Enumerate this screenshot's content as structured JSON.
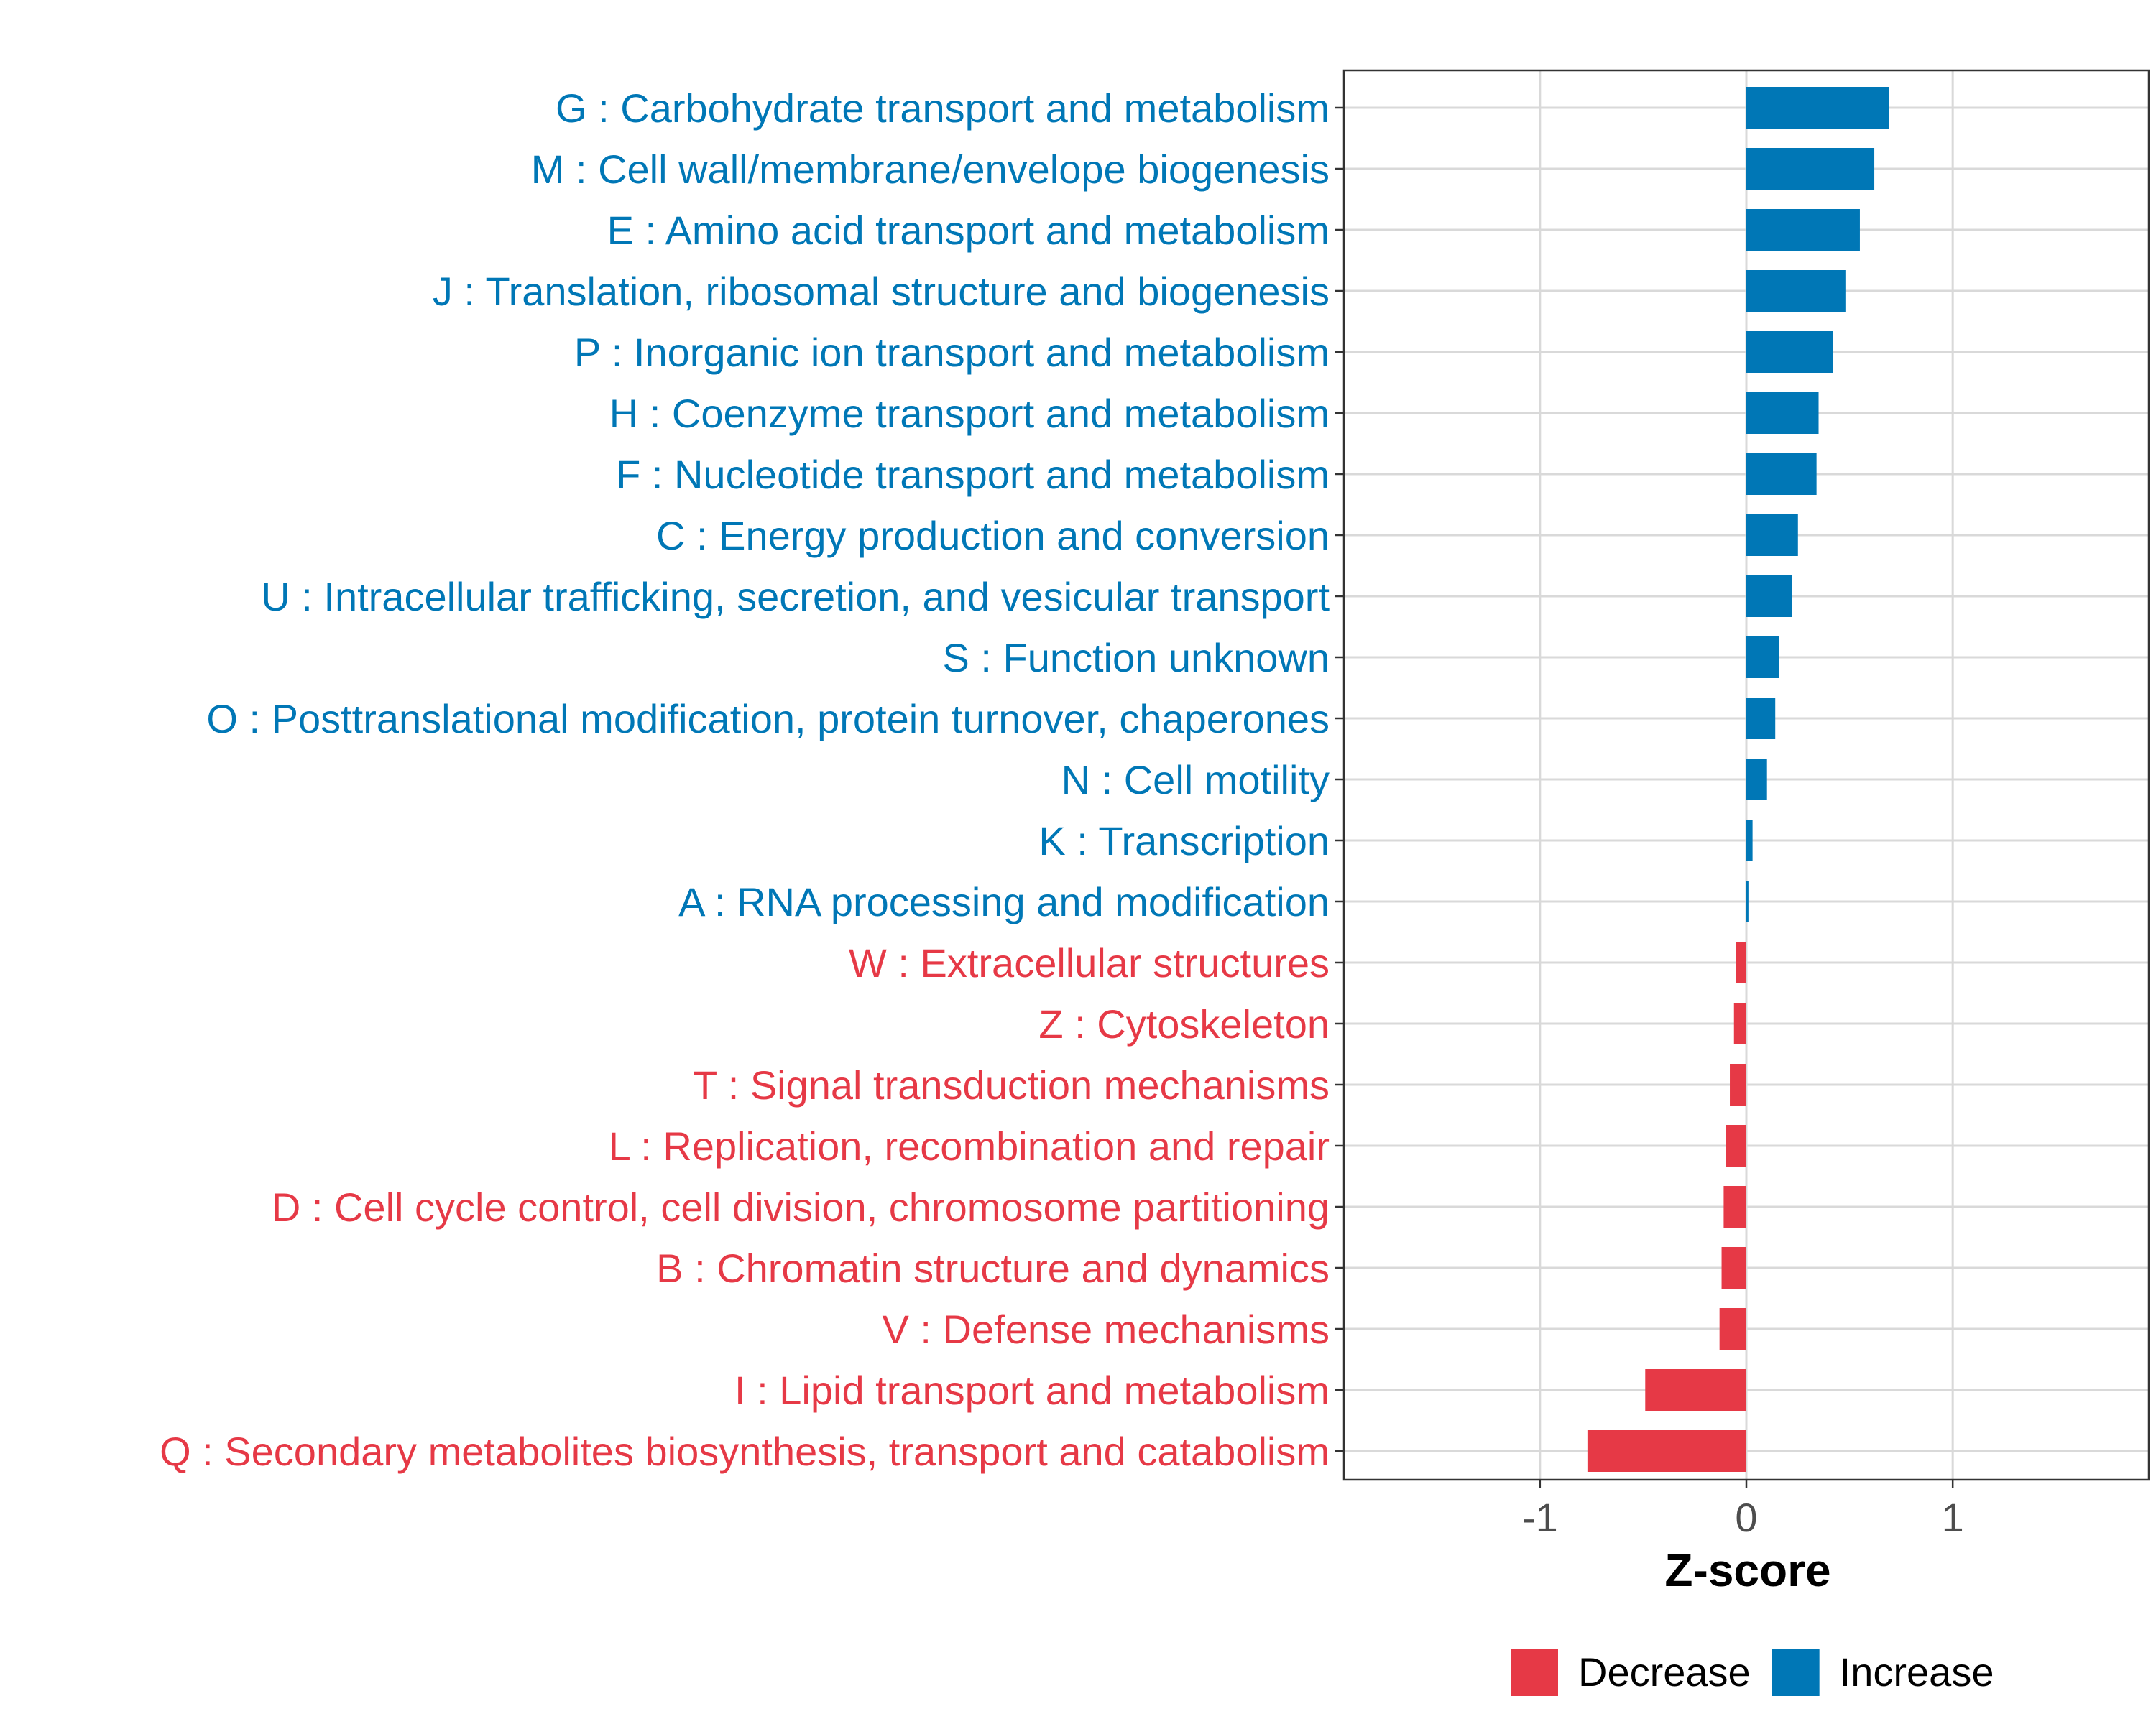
{
  "chart_data": {
    "type": "bar",
    "orientation": "horizontal",
    "categories": [
      "G : Carbohydrate transport and metabolism",
      "M : Cell wall/membrane/envelope biogenesis",
      "E : Amino acid transport and metabolism",
      "J : Translation, ribosomal structure and biogenesis",
      "P : Inorganic ion transport and metabolism",
      "H : Coenzyme transport and metabolism",
      "F : Nucleotide transport and metabolism",
      "C : Energy production and conversion",
      "U : Intracellular trafficking, secretion, and vesicular transport",
      "S : Function unknown",
      "O : Posttranslational modification, protein turnover, chaperones",
      "N : Cell motility",
      "K : Transcription",
      "A : RNA processing and modification",
      "W : Extracellular structures",
      "Z : Cytoskeleton",
      "T : Signal transduction mechanisms",
      "L : Replication, recombination and repair",
      "D : Cell cycle control, cell division, chromosome partitioning",
      "B : Chromatin structure and dynamics",
      "V : Defense mechanisms",
      "I : Lipid transport and metabolism",
      "Q : Secondary metabolites biosynthesis, transport and catabolism"
    ],
    "values": [
      0.69,
      0.62,
      0.55,
      0.48,
      0.42,
      0.35,
      0.34,
      0.25,
      0.22,
      0.16,
      0.14,
      0.1,
      0.03,
      0.01,
      -0.05,
      -0.06,
      -0.08,
      -0.1,
      -0.11,
      -0.12,
      -0.13,
      -0.49,
      -0.77
    ],
    "groups": [
      "Increase",
      "Increase",
      "Increase",
      "Increase",
      "Increase",
      "Increase",
      "Increase",
      "Increase",
      "Increase",
      "Increase",
      "Increase",
      "Increase",
      "Increase",
      "Increase",
      "Decrease",
      "Decrease",
      "Decrease",
      "Decrease",
      "Decrease",
      "Decrease",
      "Decrease",
      "Decrease",
      "Decrease"
    ],
    "xlim": [
      -1.95,
      1.95
    ],
    "xticks": [
      -1,
      0,
      1
    ],
    "xtick_labels": [
      "-1",
      "0",
      "1"
    ],
    "xlabel": "Z-score",
    "ylabel": "",
    "grid": true,
    "legend": {
      "placement": "bottom",
      "entries": [
        {
          "name": "Decrease",
          "color": "#E63946"
        },
        {
          "name": "Increase",
          "color": "#0077B6"
        }
      ]
    },
    "colors": {
      "Decrease": "#E63946",
      "Increase": "#0077B6"
    }
  }
}
